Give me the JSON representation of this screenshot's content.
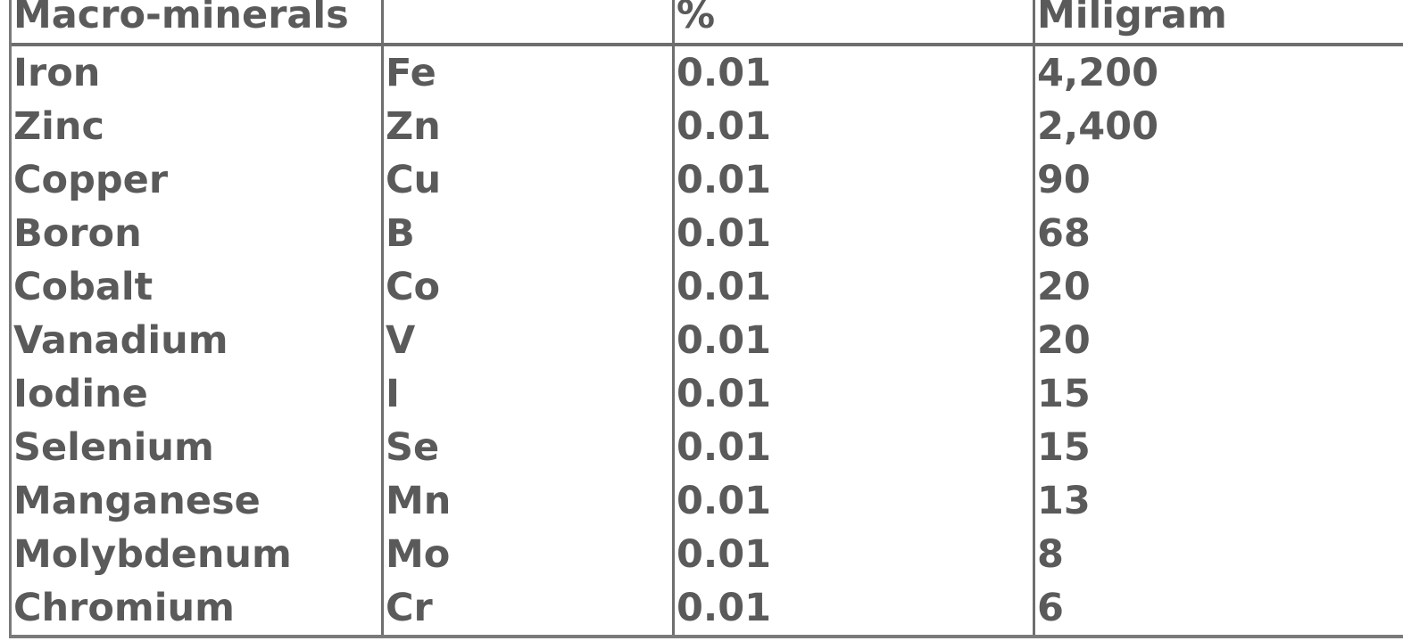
{
  "table": {
    "headers": [
      "Macro-minerals",
      "",
      "%",
      "Miligram"
    ],
    "rows": [
      [
        "Iron",
        "Fe",
        "0.01",
        "4,200"
      ],
      [
        "Zinc",
        "Zn",
        "0.01",
        "2,400"
      ],
      [
        "Copper",
        "Cu",
        "0.01",
        "90"
      ],
      [
        "Boron",
        "B",
        "0.01",
        "68"
      ],
      [
        "Cobalt",
        "Co",
        "0.01",
        "20"
      ],
      [
        "Vanadium",
        "V",
        "0.01",
        "20"
      ],
      [
        "Iodine",
        "I",
        "0.01",
        "15"
      ],
      [
        "Selenium",
        "Se",
        "0.01",
        "15"
      ],
      [
        "Manganese",
        "Mn",
        "0.01",
        "13"
      ],
      [
        "Molybdenum",
        "Mo",
        "0.01",
        "8"
      ],
      [
        "Chromium",
        "Cr",
        "0.01",
        "6"
      ]
    ]
  }
}
